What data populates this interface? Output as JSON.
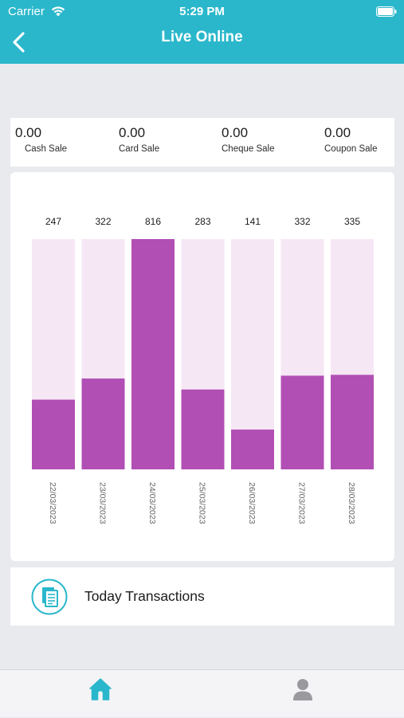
{
  "status_bar": {
    "carrier": "Carrier",
    "time": "5:29 PM"
  },
  "header": {
    "title": "Live Online",
    "back_icon": "chevron-left-icon"
  },
  "sales": [
    {
      "value": "0.00",
      "label": "Cash Sale"
    },
    {
      "value": "0.00",
      "label": "Card Sale"
    },
    {
      "value": "0.00",
      "label": "Cheque Sale"
    },
    {
      "value": "0.00",
      "label": "Coupon Sale"
    }
  ],
  "chart_data": {
    "type": "bar",
    "categories": [
      "22/03/2023",
      "23/03/2023",
      "24/03/2023",
      "25/03/2023",
      "26/03/2023",
      "27/03/2023",
      "28/03/2023"
    ],
    "values": [
      247,
      322,
      816,
      283,
      141,
      332,
      335
    ],
    "ylim": [
      0,
      816
    ],
    "grid": false,
    "legend": "none",
    "colors": {
      "bar": "#b14fb5",
      "track": "#f6e7f5",
      "label": "#1c1c1e",
      "tick": "#666666"
    }
  },
  "transactions": {
    "label": "Today Transactions",
    "icon": "document-list-icon"
  },
  "tab_bar": {
    "items": [
      {
        "name": "home",
        "icon": "home-icon",
        "active": true
      },
      {
        "name": "profile",
        "icon": "user-icon",
        "active": false
      }
    ]
  },
  "colors": {
    "primary": "#2ab7cb",
    "background": "#e9eaed",
    "inactive": "#9a9a9e"
  }
}
